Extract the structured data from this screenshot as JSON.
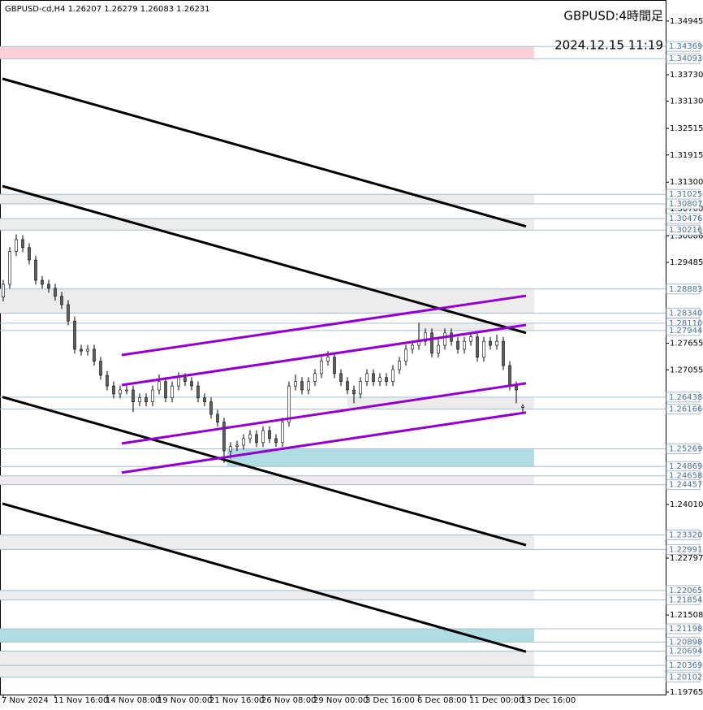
{
  "chart_data": {
    "type": "candlestick",
    "header": "GBPUSD-cd,H4  1.26207 1.26279 1.26083 1.26231",
    "title": "GBPUSD:4時間足",
    "subtitle": "2024.12.15 11:19",
    "xlim": [
      -1,
      204
    ],
    "ylim": [
      1.1971,
      1.3542
    ],
    "xticks": [
      {
        "value": 0,
        "label": "7 Nov 2024"
      },
      {
        "value": 16,
        "label": "11 Nov 16:00"
      },
      {
        "value": 32,
        "label": "14 Nov 08:00"
      },
      {
        "value": 48,
        "label": "19 Nov 00:00"
      },
      {
        "value": 64,
        "label": "21 Nov 16:00"
      },
      {
        "value": 80,
        "label": "26 Nov 08:00"
      },
      {
        "value": 96,
        "label": "29 Nov 00:00"
      },
      {
        "value": 112,
        "label": "3 Dec 16:00"
      },
      {
        "value": 128,
        "label": "6 Dec 08:00"
      },
      {
        "value": 144,
        "label": "11 Dec 00:00"
      },
      {
        "value": 160,
        "label": "13 Dec 16:00"
      }
    ],
    "yticks": [
      1.34945,
      {
        "value": 1.3373,
        "label": "1.33730"
      },
      {
        "value": 1.3313,
        "label": "1.33130"
      },
      1.32515,
      1.31915,
      {
        "value": 1.313,
        "label": "1.31300"
      },
      {
        "value": 1.307,
        "label": "1.30700"
      },
      1.30086,
      1.29485,
      1.27655,
      1.27055,
      {
        "value": 1.2401,
        "label": "1.24010"
      },
      1.22797,
      1.21508,
      1.19765
    ],
    "levels": [
      1.34369,
      1.34093,
      1.31025,
      1.30807,
      1.30476,
      1.30216,
      1.28883,
      {
        "value": 1.2834,
        "label": "1.28340"
      },
      {
        "value": 1.2811,
        "label": "1.28110"
      },
      1.27944,
      1.26438,
      1.26166,
      1.25269,
      1.24869,
      1.24658,
      1.24457,
      {
        "value": 1.2332,
        "label": "1.23320"
      },
      1.22991,
      1.22065,
      1.21854,
      1.21198,
      1.20898,
      1.20694,
      1.20369,
      1.20102
    ],
    "level_color": "#a8bcd0",
    "zones": [
      {
        "from": 1.34369,
        "to": 1.34093,
        "x": [
          -1,
          163.5
        ],
        "color": "#ffd0d8"
      },
      {
        "from": 1.31025,
        "to": 1.30807,
        "x": [
          -1,
          163.5
        ],
        "color": "#ececec"
      },
      {
        "from": 1.30476,
        "to": 1.30216,
        "x": [
          -1,
          163.5
        ],
        "color": "#ececec"
      },
      {
        "from": 1.28883,
        "to": 1.2834,
        "x": [
          -1,
          163.5
        ],
        "color": "#ececec"
      },
      {
        "from": 1.2811,
        "to": 1.27944,
        "x": [
          128,
          163.5
        ],
        "color": "#ececec"
      },
      {
        "from": 1.26438,
        "to": 1.26166,
        "x": [
          106,
          163.5
        ],
        "color": "#ececec"
      },
      {
        "from": 1.25269,
        "to": 1.24869,
        "x": [
          69,
          163.5
        ],
        "color": "#b0dde4"
      },
      {
        "from": 1.24658,
        "to": 1.24457,
        "x": [
          -1,
          163.5
        ],
        "color": "#ececec"
      },
      {
        "from": 1.2332,
        "to": 1.22991,
        "x": [
          -1,
          163.5
        ],
        "color": "#ececec"
      },
      {
        "from": 1.22065,
        "to": 1.21854,
        "x": [
          -1,
          163.5
        ],
        "color": "#ececec"
      },
      {
        "from": 1.21198,
        "to": 1.20898,
        "x": [
          -1,
          163.5
        ],
        "color": "#b0dde4"
      },
      {
        "from": 1.20694,
        "to": 1.20102,
        "x": [
          -1,
          163.5
        ],
        "color": "#ececec"
      }
    ],
    "trendlines": [
      {
        "x": [
          -0.25,
          161
        ],
        "y": [
          1.3364,
          1.303
        ],
        "color": "#000000"
      },
      {
        "x": [
          -0.25,
          161
        ],
        "y": [
          1.3121,
          1.2789
        ],
        "color": "#000000"
      },
      {
        "x": [
          -0.25,
          161
        ],
        "y": [
          1.2644,
          1.2309
        ],
        "color": "#000000"
      },
      {
        "x": [
          -0.25,
          161
        ],
        "y": [
          1.2403,
          1.2068
        ],
        "color": "#000000"
      },
      {
        "x": [
          36.5,
          161
        ],
        "y": [
          1.2739,
          1.2873
        ],
        "color": "#9400d3"
      },
      {
        "x": [
          36.5,
          161
        ],
        "y": [
          1.2671,
          1.2807
        ],
        "color": "#9400d3"
      },
      {
        "x": [
          36.5,
          161
        ],
        "y": [
          1.2539,
          1.2675
        ],
        "color": "#9400d3"
      },
      {
        "x": [
          36.5,
          161
        ],
        "y": [
          1.2473,
          1.2609
        ],
        "color": "#9400d3"
      }
    ],
    "up_color": "#ffffff",
    "down_color": "#606060",
    "wick_color": "#000000",
    "candles": [
      [
        0,
        1.287,
        1.2909,
        1.286,
        1.2899
      ],
      [
        2,
        1.2899,
        1.2983,
        1.2889,
        1.2973
      ],
      [
        4,
        1.2973,
        1.3012,
        1.2963,
        1.3
      ],
      [
        6,
        1.3,
        1.301,
        1.2972,
        1.2982
      ],
      [
        8,
        1.2982,
        1.2992,
        1.2944,
        1.2954
      ],
      [
        10,
        1.2954,
        1.2964,
        1.2898,
        1.2908
      ],
      [
        12,
        1.2908,
        1.2918,
        1.2889,
        1.2899
      ],
      [
        14,
        1.2899,
        1.2909,
        1.288,
        1.289
      ],
      [
        16,
        1.289,
        1.29,
        1.2862,
        1.2872
      ],
      [
        18,
        1.2872,
        1.2882,
        1.2843,
        1.2853
      ],
      [
        20,
        1.2853,
        1.2863,
        1.2806,
        1.2816
      ],
      [
        22,
        1.2816,
        1.2826,
        1.2742,
        1.2752
      ],
      [
        24,
        1.2752,
        1.2762,
        1.2738,
        1.2748
      ],
      [
        26,
        1.2748,
        1.2762,
        1.2738,
        1.2752
      ],
      [
        28,
        1.2752,
        1.2762,
        1.2715,
        1.2725
      ],
      [
        30,
        1.2725,
        1.2735,
        1.2683,
        1.2693
      ],
      [
        32,
        1.2693,
        1.2703,
        1.2659,
        1.2669
      ],
      [
        34,
        1.2669,
        1.2679,
        1.2641,
        1.2651
      ],
      [
        36,
        1.2651,
        1.267,
        1.2641,
        1.266
      ],
      [
        38,
        1.266,
        1.267,
        1.265,
        1.266
      ],
      [
        40,
        1.266,
        1.267,
        1.261,
        1.2633
      ],
      [
        42,
        1.2633,
        1.2652,
        1.2623,
        1.2642
      ],
      [
        44,
        1.2642,
        1.2652,
        1.2623,
        1.2633
      ],
      [
        46,
        1.2633,
        1.267,
        1.2623,
        1.266
      ],
      [
        48,
        1.266,
        1.2695,
        1.265,
        1.2679
      ],
      [
        50,
        1.2679,
        1.2689,
        1.2632,
        1.2642
      ],
      [
        52,
        1.2642,
        1.2679,
        1.2632,
        1.2669
      ],
      [
        54,
        1.2669,
        1.27,
        1.2659,
        1.2688
      ],
      [
        56,
        1.2688,
        1.2698,
        1.2669,
        1.2679
      ],
      [
        58,
        1.2679,
        1.2689,
        1.2659,
        1.2669
      ],
      [
        60,
        1.2669,
        1.2679,
        1.2632,
        1.2642
      ],
      [
        62,
        1.2642,
        1.2652,
        1.2623,
        1.2633
      ],
      [
        64,
        1.2633,
        1.2643,
        1.2595,
        1.2605
      ],
      [
        66,
        1.2605,
        1.2615,
        1.2577,
        1.2587
      ],
      [
        68,
        1.2587,
        1.2597,
        1.2495,
        1.2522
      ],
      [
        70,
        1.2522,
        1.2542,
        1.2505,
        1.2532
      ],
      [
        72,
        1.2532,
        1.2545,
        1.2522,
        1.2535
      ],
      [
        74,
        1.2535,
        1.256,
        1.2525,
        1.255
      ],
      [
        76,
        1.255,
        1.2569,
        1.254,
        1.2559
      ],
      [
        78,
        1.2559,
        1.2569,
        1.2531,
        1.2541
      ],
      [
        80,
        1.2541,
        1.2578,
        1.2531,
        1.2568
      ],
      [
        82,
        1.2568,
        1.2578,
        1.254,
        1.255
      ],
      [
        84,
        1.255,
        1.256,
        1.2531,
        1.2541
      ],
      [
        86,
        1.2541,
        1.2597,
        1.2531,
        1.2587
      ],
      [
        88,
        1.2587,
        1.2679,
        1.2577,
        1.2669
      ],
      [
        90,
        1.2669,
        1.2695,
        1.2659,
        1.2679
      ],
      [
        92,
        1.2679,
        1.2689,
        1.265,
        1.266
      ],
      [
        94,
        1.266,
        1.2689,
        1.265,
        1.2679
      ],
      [
        96,
        1.2679,
        1.2707,
        1.2669,
        1.2697
      ],
      [
        98,
        1.2697,
        1.2735,
        1.2687,
        1.2725
      ],
      [
        100,
        1.2725,
        1.2748,
        1.2715,
        1.2734
      ],
      [
        102,
        1.2734,
        1.2744,
        1.2687,
        1.2697
      ],
      [
        104,
        1.2697,
        1.2707,
        1.2669,
        1.2679
      ],
      [
        106,
        1.2679,
        1.2689,
        1.265,
        1.266
      ],
      [
        108,
        1.266,
        1.267,
        1.263,
        1.2651
      ],
      [
        110,
        1.2651,
        1.2689,
        1.2641,
        1.2679
      ],
      [
        112,
        1.2679,
        1.2707,
        1.2669,
        1.2697
      ],
      [
        114,
        1.2697,
        1.2707,
        1.2669,
        1.2679
      ],
      [
        116,
        1.2679,
        1.2698,
        1.2669,
        1.2688
      ],
      [
        118,
        1.2688,
        1.2698,
        1.2669,
        1.2679
      ],
      [
        120,
        1.2679,
        1.2716,
        1.2669,
        1.2706
      ],
      [
        122,
        1.2706,
        1.2735,
        1.2696,
        1.2725
      ],
      [
        124,
        1.2725,
        1.2762,
        1.2715,
        1.2752
      ],
      [
        126,
        1.2752,
        1.2771,
        1.2742,
        1.2761
      ],
      [
        128,
        1.2761,
        1.2812,
        1.2751,
        1.277
      ],
      [
        130,
        1.277,
        1.2799,
        1.276,
        1.2789
      ],
      [
        132,
        1.2789,
        1.2799,
        1.2733,
        1.2743
      ],
      [
        134,
        1.2743,
        1.2775,
        1.2733,
        1.2761
      ],
      [
        136,
        1.2761,
        1.2799,
        1.2751,
        1.2789
      ],
      [
        138,
        1.2789,
        1.2799,
        1.276,
        1.277
      ],
      [
        140,
        1.277,
        1.278,
        1.2742,
        1.2752
      ],
      [
        142,
        1.2752,
        1.278,
        1.2742,
        1.277
      ],
      [
        144,
        1.277,
        1.279,
        1.276,
        1.278
      ],
      [
        146,
        1.278,
        1.279,
        1.2724,
        1.2734
      ],
      [
        148,
        1.2734,
        1.278,
        1.2724,
        1.277
      ],
      [
        150,
        1.277,
        1.278,
        1.2751,
        1.2761
      ],
      [
        152,
        1.2761,
        1.2785,
        1.2751,
        1.277
      ],
      [
        154,
        1.277,
        1.278,
        1.2705,
        1.2715
      ],
      [
        156,
        1.2715,
        1.2725,
        1.2659,
        1.2669
      ],
      [
        158,
        1.2669,
        1.2679,
        1.263,
        1.266
      ],
      [
        160,
        1.26207,
        1.26279,
        1.26083,
        1.26231
      ]
    ]
  }
}
